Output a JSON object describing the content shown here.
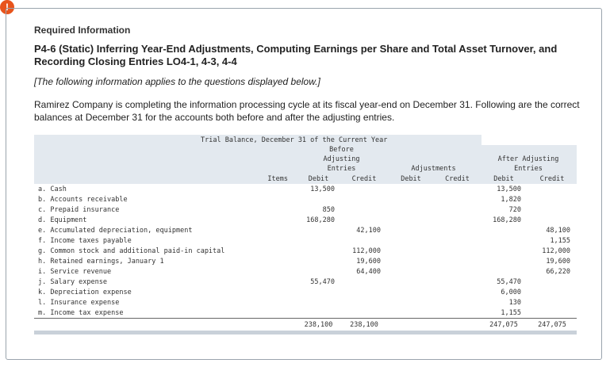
{
  "header": {
    "label": "Required Information",
    "title": "P4-6 (Static) Inferring Year-End Adjustments, Computing Earnings per Share and Total Asset Turnover, and Recording Closing Entries LO4-1, 4-3, 4-4",
    "note": "[The following information applies to the questions displayed below.]"
  },
  "intro": "Ramirez Company is completing the information processing cycle at its fiscal year-end on December 31. Following are the correct balances at December 31 for the accounts both before and after the adjusting entries.",
  "table": {
    "caption": "Trial Balance, December 31 of the Current Year",
    "groups": [
      "Before Adjusting Entries",
      "Adjustments",
      "After Adjusting Entries"
    ],
    "columns": [
      "Items",
      "Debit",
      "Credit",
      "Debit",
      "Credit",
      "Debit",
      "Credit"
    ],
    "rows": [
      [
        "a. Cash",
        "13,500",
        null,
        null,
        null,
        "13,500",
        null
      ],
      [
        "b. Accounts receivable",
        null,
        null,
        null,
        null,
        "1,820",
        null
      ],
      [
        "c. Prepaid insurance",
        "850",
        null,
        null,
        null,
        "720",
        null
      ],
      [
        "d. Equipment",
        "168,280",
        null,
        null,
        null,
        "168,280",
        null
      ],
      [
        "e. Accumulated depreciation, equipment",
        null,
        "42,100",
        null,
        null,
        null,
        "48,100"
      ],
      [
        "f. Income taxes payable",
        null,
        null,
        null,
        null,
        null,
        "1,155"
      ],
      [
        "g. Common stock and additional paid-in capital",
        null,
        "112,000",
        null,
        null,
        null,
        "112,000"
      ],
      [
        "h. Retained earnings, January 1",
        null,
        "19,600",
        null,
        null,
        null,
        "19,600"
      ],
      [
        "i. Service revenue",
        null,
        "64,400",
        null,
        null,
        null,
        "66,220"
      ],
      [
        "j. Salary expense",
        "55,470",
        null,
        null,
        null,
        "55,470",
        null
      ],
      [
        "k. Depreciation expense",
        null,
        null,
        null,
        null,
        "6,000",
        null
      ],
      [
        "l. Insurance expense",
        null,
        null,
        null,
        null,
        "130",
        null
      ],
      [
        "m. Income tax expense",
        null,
        null,
        null,
        null,
        "1,155",
        null
      ]
    ],
    "totals": [
      null,
      "238,100",
      "238,100",
      null,
      null,
      "247,075",
      "247,075"
    ]
  }
}
